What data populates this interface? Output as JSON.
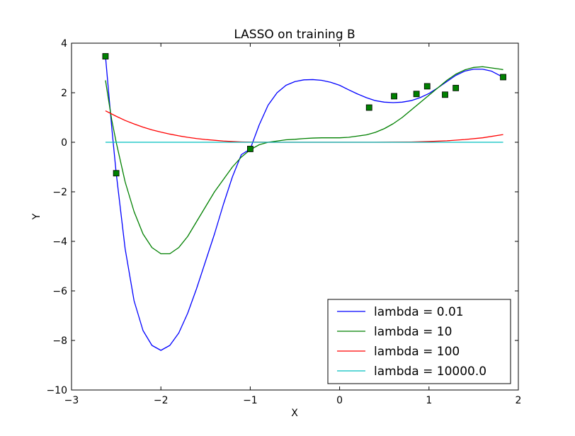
{
  "chart_data": {
    "type": "line",
    "title": "LASSO on training B",
    "xlabel": "X",
    "ylabel": "Y",
    "xlim": [
      -3,
      2
    ],
    "ylim": [
      -10,
      4
    ],
    "xticks": [
      "−3",
      "−2",
      "−1",
      "0",
      "1",
      "2"
    ],
    "xtick_values": [
      -3,
      -2,
      -1,
      0,
      1,
      2
    ],
    "yticks": [
      "−10",
      "−8",
      "−6",
      "−4",
      "−2",
      "0",
      "2",
      "4"
    ],
    "ytick_values": [
      -10,
      -8,
      -6,
      -4,
      -2,
      0,
      2,
      4
    ],
    "grid": false,
    "legend_position": "lower-right",
    "points": {
      "marker": "square",
      "color": "#008000",
      "x": [
        -2.62,
        -2.5,
        -1.0,
        0.33,
        0.61,
        0.86,
        0.98,
        1.18,
        1.3,
        1.83
      ],
      "y": [
        3.47,
        -1.25,
        -0.27,
        1.4,
        1.86,
        1.95,
        2.26,
        1.92,
        2.19,
        2.63
      ]
    },
    "series": [
      {
        "name": "lambda = 0.01",
        "color": "#0000ff",
        "x": [
          -2.62,
          -2.55,
          -2.5,
          -2.4,
          -2.3,
          -2.2,
          -2.1,
          -2.0,
          -1.9,
          -1.8,
          -1.7,
          -1.6,
          -1.5,
          -1.4,
          -1.3,
          -1.2,
          -1.1,
          -1.0,
          -0.9,
          -0.8,
          -0.7,
          -0.6,
          -0.5,
          -0.4,
          -0.3,
          -0.2,
          -0.1,
          0.0,
          0.1,
          0.2,
          0.3,
          0.4,
          0.5,
          0.6,
          0.7,
          0.8,
          0.9,
          1.0,
          1.1,
          1.2,
          1.3,
          1.4,
          1.5,
          1.6,
          1.7,
          1.8,
          1.83
        ],
        "y": [
          3.47,
          0.6,
          -1.25,
          -4.3,
          -6.4,
          -7.6,
          -8.2,
          -8.4,
          -8.2,
          -7.7,
          -6.9,
          -5.9,
          -4.8,
          -3.7,
          -2.5,
          -1.4,
          -0.5,
          -0.27,
          0.7,
          1.5,
          2.0,
          2.3,
          2.45,
          2.52,
          2.53,
          2.5,
          2.42,
          2.3,
          2.12,
          1.95,
          1.8,
          1.68,
          1.62,
          1.6,
          1.62,
          1.68,
          1.8,
          1.97,
          2.2,
          2.45,
          2.7,
          2.87,
          2.95,
          2.95,
          2.87,
          2.68,
          2.63
        ]
      },
      {
        "name": "lambda = 10",
        "color": "#008000",
        "x": [
          -2.62,
          -2.55,
          -2.5,
          -2.4,
          -2.3,
          -2.2,
          -2.1,
          -2.0,
          -1.9,
          -1.8,
          -1.7,
          -1.6,
          -1.5,
          -1.4,
          -1.3,
          -1.2,
          -1.1,
          -1.0,
          -0.9,
          -0.8,
          -0.7,
          -0.6,
          -0.5,
          -0.4,
          -0.3,
          -0.2,
          -0.1,
          0.0,
          0.1,
          0.2,
          0.3,
          0.4,
          0.5,
          0.6,
          0.7,
          0.8,
          0.9,
          1.0,
          1.1,
          1.2,
          1.3,
          1.4,
          1.5,
          1.6,
          1.7,
          1.8,
          1.83
        ],
        "y": [
          2.5,
          0.9,
          0.0,
          -1.6,
          -2.8,
          -3.7,
          -4.25,
          -4.5,
          -4.5,
          -4.25,
          -3.8,
          -3.2,
          -2.6,
          -2.0,
          -1.5,
          -1.0,
          -0.6,
          -0.3,
          -0.1,
          0.0,
          0.05,
          0.1,
          0.12,
          0.15,
          0.17,
          0.18,
          0.18,
          0.18,
          0.2,
          0.25,
          0.3,
          0.4,
          0.55,
          0.75,
          1.0,
          1.3,
          1.6,
          1.9,
          2.2,
          2.5,
          2.75,
          2.92,
          3.02,
          3.05,
          3.0,
          2.95,
          2.93
        ]
      },
      {
        "name": "lambda = 100",
        "color": "#ff0000",
        "x": [
          -2.62,
          -2.5,
          -2.4,
          -2.3,
          -2.2,
          -2.1,
          -2.0,
          -1.9,
          -1.8,
          -1.7,
          -1.6,
          -1.5,
          -1.4,
          -1.3,
          -1.2,
          -1.1,
          -1.0,
          -0.8,
          -0.6,
          -0.4,
          -0.2,
          0.0,
          0.2,
          0.4,
          0.6,
          0.8,
          1.0,
          1.2,
          1.4,
          1.6,
          1.83
        ],
        "y": [
          1.27,
          1.05,
          0.88,
          0.74,
          0.61,
          0.5,
          0.41,
          0.33,
          0.26,
          0.2,
          0.15,
          0.11,
          0.08,
          0.05,
          0.03,
          0.015,
          0.005,
          0.0,
          0.0,
          0.0,
          0.0,
          0.0,
          0.0,
          0.0,
          0.005,
          0.01,
          0.03,
          0.06,
          0.11,
          0.18,
          0.31
        ]
      },
      {
        "name": "lambda = 10000.0",
        "color": "#00bfbf",
        "x": [
          -2.62,
          1.83
        ],
        "y": [
          0.0,
          0.0
        ]
      }
    ]
  }
}
